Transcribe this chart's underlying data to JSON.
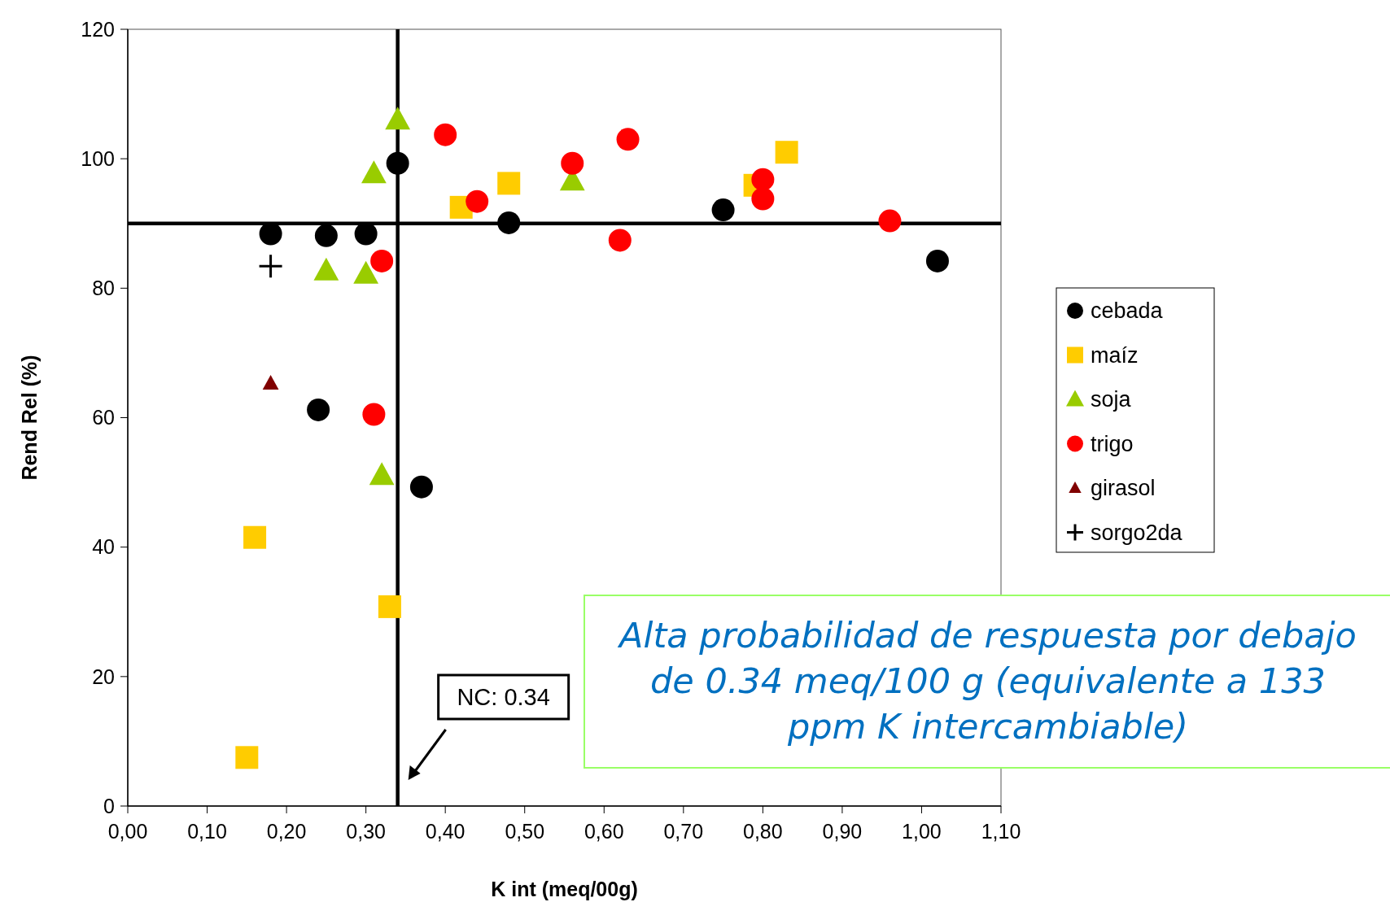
{
  "chart_data": {
    "type": "scatter",
    "xlabel": "K int (meq/00g)",
    "ylabel": "Rend Rel (%)",
    "xlim": [
      0,
      1.1
    ],
    "xticks": [
      {
        "value": 0,
        "label": "0,00"
      },
      {
        "value": 0.1,
        "label": "0,10"
      },
      {
        "value": 0.2,
        "label": "0,20"
      },
      {
        "value": 0.3,
        "label": "0,30"
      },
      {
        "value": 0.4,
        "label": "0,40"
      },
      {
        "value": 0.5,
        "label": "0,50"
      },
      {
        "value": 0.6,
        "label": "0,60"
      },
      {
        "value": 0.7,
        "label": "0,70"
      },
      {
        "value": 0.8,
        "label": "0,80"
      },
      {
        "value": 0.9,
        "label": "0,90"
      },
      {
        "value": 1.0,
        "label": "1,00"
      },
      {
        "value": 1.1,
        "label": "1,10"
      }
    ],
    "ylim": [
      0,
      120
    ],
    "yticks": [
      0,
      20,
      40,
      60,
      80,
      100,
      120
    ],
    "grid": false,
    "legend": "right",
    "series": [
      {
        "name": "cebada",
        "color": "#000000",
        "marker": "circle",
        "x": [
          0.18,
          0.25,
          0.3,
          0.34,
          0.48,
          0.75,
          1.02,
          0.24,
          0.37
        ],
        "values": [
          88.4,
          88.1,
          88.4,
          99.3,
          90.1,
          92.1,
          84.2,
          61.2,
          49.3
        ]
      },
      {
        "name": "maíz",
        "color": "#ffcc00",
        "marker": "square",
        "x": [
          0.16,
          0.33,
          0.15,
          0.42,
          0.48,
          0.79,
          0.83
        ],
        "values": [
          41.5,
          30.8,
          7.5,
          92.5,
          96.2,
          95.9,
          101
        ]
      },
      {
        "name": "soja",
        "color": "#99cc00",
        "marker": "triangle",
        "x": [
          0.34,
          0.31,
          0.25,
          0.3,
          0.56,
          0.32
        ],
        "values": [
          106,
          97.7,
          82.7,
          82.2,
          96.6,
          51.1
        ]
      },
      {
        "name": "trigo",
        "color": "#ff0000",
        "marker": "circle",
        "x": [
          0.4,
          0.44,
          0.32,
          0.31,
          0.56,
          0.63,
          0.62,
          0.8,
          0.8,
          0.96
        ],
        "values": [
          103.7,
          93.4,
          84.2,
          60.5,
          99.3,
          103,
          87.4,
          96.8,
          93.8,
          90.4
        ]
      },
      {
        "name": "girasol",
        "color": "#800000",
        "marker": "triangle",
        "x": [
          0.18
        ],
        "values": [
          65.3
        ]
      },
      {
        "name": "sorgo2da",
        "color": "#000000",
        "marker": "cross",
        "x": [
          0.18
        ],
        "values": [
          83.4
        ]
      }
    ],
    "ref_lines": [
      {
        "axis": "x",
        "value": 0.34,
        "label": "NC: 0.34",
        "color": "#000000"
      },
      {
        "axis": "y",
        "value": 90,
        "color": "#000000"
      }
    ],
    "annotations": [
      "Alta probabilidad de respuesta por debajo de 0.34 meq/100 g (equivalente a 133 ppm K intercambiable)"
    ]
  }
}
